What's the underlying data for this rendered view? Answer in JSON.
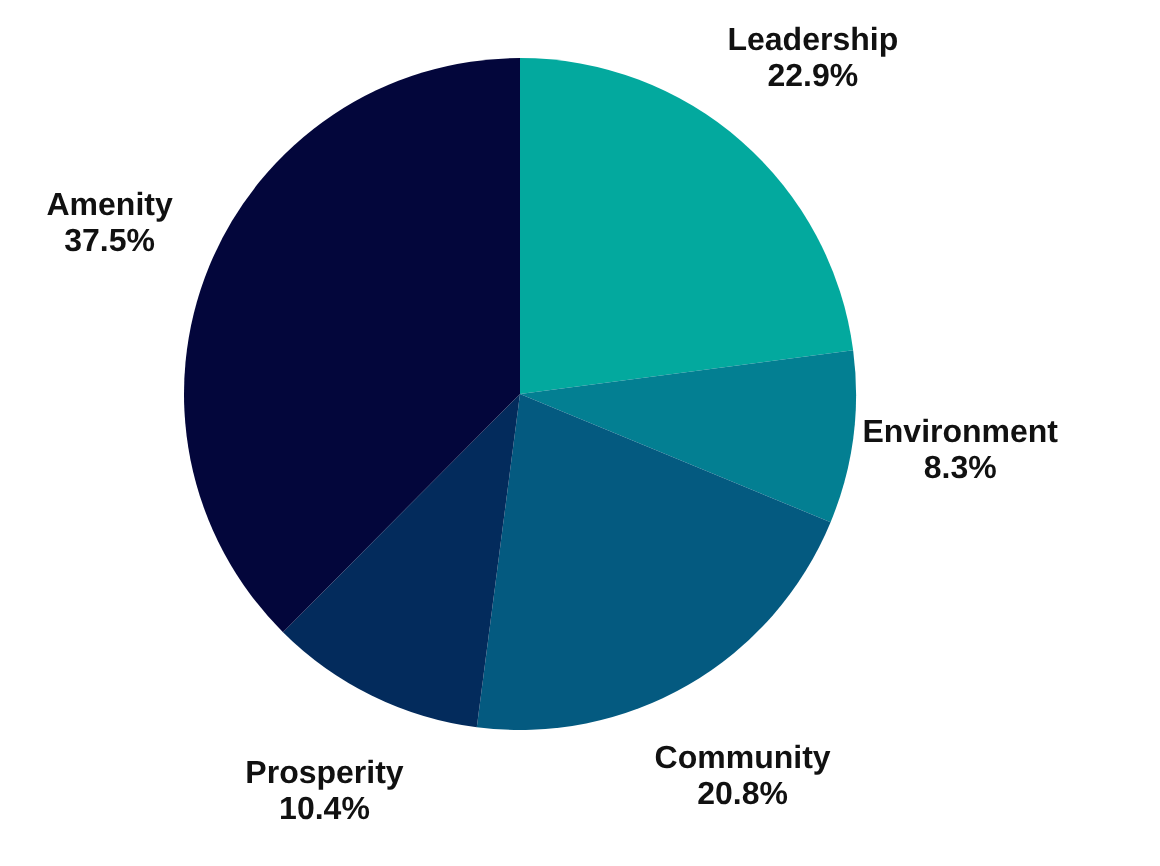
{
  "chart_data": {
    "type": "pie",
    "categories": [
      "Leadership",
      "Environment",
      "Community",
      "Prosperity",
      "Amenity"
    ],
    "values": [
      22.9,
      8.3,
      20.8,
      10.4,
      37.5
    ],
    "value_labels": [
      "22.9%",
      "8.3%",
      "20.8%",
      "10.4%",
      "37.5%"
    ],
    "colors": [
      "#03a99e",
      "#037f92",
      "#045a80",
      "#032b5c",
      "#03063b"
    ]
  }
}
